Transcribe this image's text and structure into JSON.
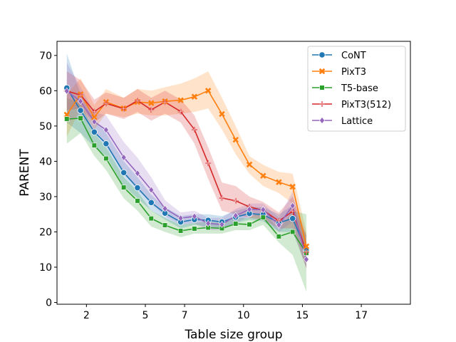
{
  "chart_data": {
    "type": "line",
    "xlabel": "Table size group",
    "ylabel": "PARENT",
    "xlim": [
      -0.5,
      17.5
    ],
    "ylim": [
      -0.5,
      74
    ],
    "x_ticks": [
      {
        "pos": 1,
        "label": "2"
      },
      {
        "pos": 4,
        "label": "5"
      },
      {
        "pos": 6,
        "label": "7"
      },
      {
        "pos": 9,
        "label": "10"
      },
      {
        "pos": 12,
        "label": "15"
      },
      {
        "pos": 15,
        "label": "17"
      }
    ],
    "y_ticks": [
      0,
      10,
      20,
      30,
      40,
      50,
      60,
      70
    ],
    "grid": false,
    "legend": "top-right",
    "x": [
      0,
      0.7,
      1.4,
      2.0,
      2.9,
      3.6,
      4.3,
      5.0,
      5.8,
      6.5,
      7.2,
      7.9,
      8.6,
      9.3,
      10.0,
      10.8,
      11.5,
      12.2,
      12.9,
      13.6,
      14.3,
      15.0,
      15.2
    ],
    "series": [
      {
        "name": "CoNT",
        "color": "#1f77b4",
        "marker": "circle",
        "values": [
          60.8,
          54.4,
          48.3,
          45.0,
          36.8,
          32.5,
          28.3,
          25.3,
          22.8,
          23.5,
          23.3,
          22.8,
          24.2,
          25.2,
          24.9,
          22.6,
          23.8,
          14.7,
          null,
          null,
          null,
          null,
          null
        ],
        "lower": [
          51,
          48,
          44,
          41.5,
          33,
          29.5,
          26,
          23.5,
          21,
          22,
          21.5,
          21,
          22.5,
          23.5,
          23,
          20,
          20,
          10,
          null,
          null,
          null,
          null,
          null
        ],
        "upper": [
          70.5,
          59,
          52,
          48,
          40,
          35.5,
          30.5,
          27,
          24.5,
          25,
          25,
          24.5,
          26,
          27,
          27,
          25,
          27.5,
          19,
          null,
          null,
          null,
          null,
          null
        ]
      },
      {
        "name": "PixT3",
        "color": "#ff7f0e",
        "marker": "x",
        "values": [
          53.2,
          59.0,
          52.5,
          56.8,
          55.0,
          56.8,
          56.5,
          57.0,
          57.3,
          58.3,
          60.0,
          53.4,
          46.1,
          39.1,
          35.9,
          34.1,
          32.8,
          15.9,
          null,
          null,
          null,
          null,
          null
        ],
        "lower": [
          47,
          55,
          49,
          53.5,
          52.5,
          53.5,
          53,
          53,
          53.5,
          54,
          55,
          49,
          42,
          36.5,
          33,
          31,
          28,
          12,
          null,
          null,
          null,
          null,
          null
        ],
        "upper": [
          59,
          63.5,
          56,
          60.5,
          58,
          60.5,
          60,
          61,
          62,
          63.5,
          65.5,
          58,
          50,
          41.5,
          39,
          37,
          36.5,
          20,
          null,
          null,
          null,
          null,
          null
        ]
      },
      {
        "name": "T5-base",
        "color": "#2ca02c",
        "marker": "square",
        "values": [
          52.0,
          52.2,
          44.5,
          40.8,
          32.6,
          28.8,
          23.8,
          21.9,
          20.3,
          20.9,
          21.2,
          21.0,
          22.3,
          22.1,
          24.1,
          18.7,
          20.0,
          14.0,
          null,
          null,
          null,
          null,
          null
        ],
        "lower": [
          45,
          48,
          41.5,
          37.5,
          29.5,
          26,
          21.5,
          20,
          18.5,
          19.5,
          19.5,
          19.5,
          20.5,
          20.5,
          22,
          17,
          13.5,
          3,
          null,
          null,
          null,
          null,
          null
        ],
        "upper": [
          58,
          56.5,
          48,
          44,
          35.5,
          31.5,
          26,
          24,
          22,
          22.5,
          23,
          22.5,
          24,
          24,
          26,
          20.5,
          26,
          25,
          null,
          null,
          null,
          null,
          null
        ]
      },
      {
        "name": "PixT3(512)",
        "color": "#d62728",
        "marker": "plus",
        "values": [
          59.9,
          58.8,
          54.1,
          56.4,
          54.9,
          57.2,
          54.6,
          56.8,
          54.1,
          49.0,
          39.5,
          29.6,
          28.8,
          27.1,
          26.1,
          23.1,
          25.8,
          14.3,
          null,
          null,
          null,
          null,
          null
        ],
        "lower": [
          54.5,
          55,
          51,
          53.5,
          52,
          54,
          51.5,
          53.5,
          51,
          45,
          35,
          26,
          25,
          24,
          23.5,
          21,
          21,
          9.5,
          null,
          null,
          null,
          null,
          null
        ],
        "upper": [
          65.5,
          63,
          57.5,
          59.5,
          58,
          60.5,
          58,
          60,
          57.5,
          53,
          44,
          34,
          33,
          30,
          28.5,
          25.5,
          30,
          19,
          null,
          null,
          null,
          null,
          null
        ]
      },
      {
        "name": "Lattice",
        "color": "#9467bd",
        "marker": "diamond",
        "values": [
          59.9,
          57.0,
          51.2,
          48.9,
          41.1,
          36.6,
          31.9,
          26.6,
          23.9,
          24.4,
          22.4,
          22.1,
          24.6,
          26.4,
          26.3,
          22.0,
          27.4,
          12.2,
          null,
          null,
          null,
          null,
          null
        ],
        "lower": [
          51,
          53,
          48.5,
          44.5,
          36.5,
          32,
          28,
          24.5,
          22,
          22.5,
          20.5,
          20.5,
          22.5,
          24.5,
          24.5,
          20,
          23,
          9.5,
          null,
          null,
          null,
          null,
          null
        ],
        "upper": [
          68,
          61,
          54,
          53,
          45.5,
          41,
          35.5,
          29,
          25.5,
          26,
          24,
          24,
          26.5,
          28,
          28,
          24,
          31.5,
          15,
          null,
          null,
          null,
          null,
          null
        ]
      }
    ]
  }
}
